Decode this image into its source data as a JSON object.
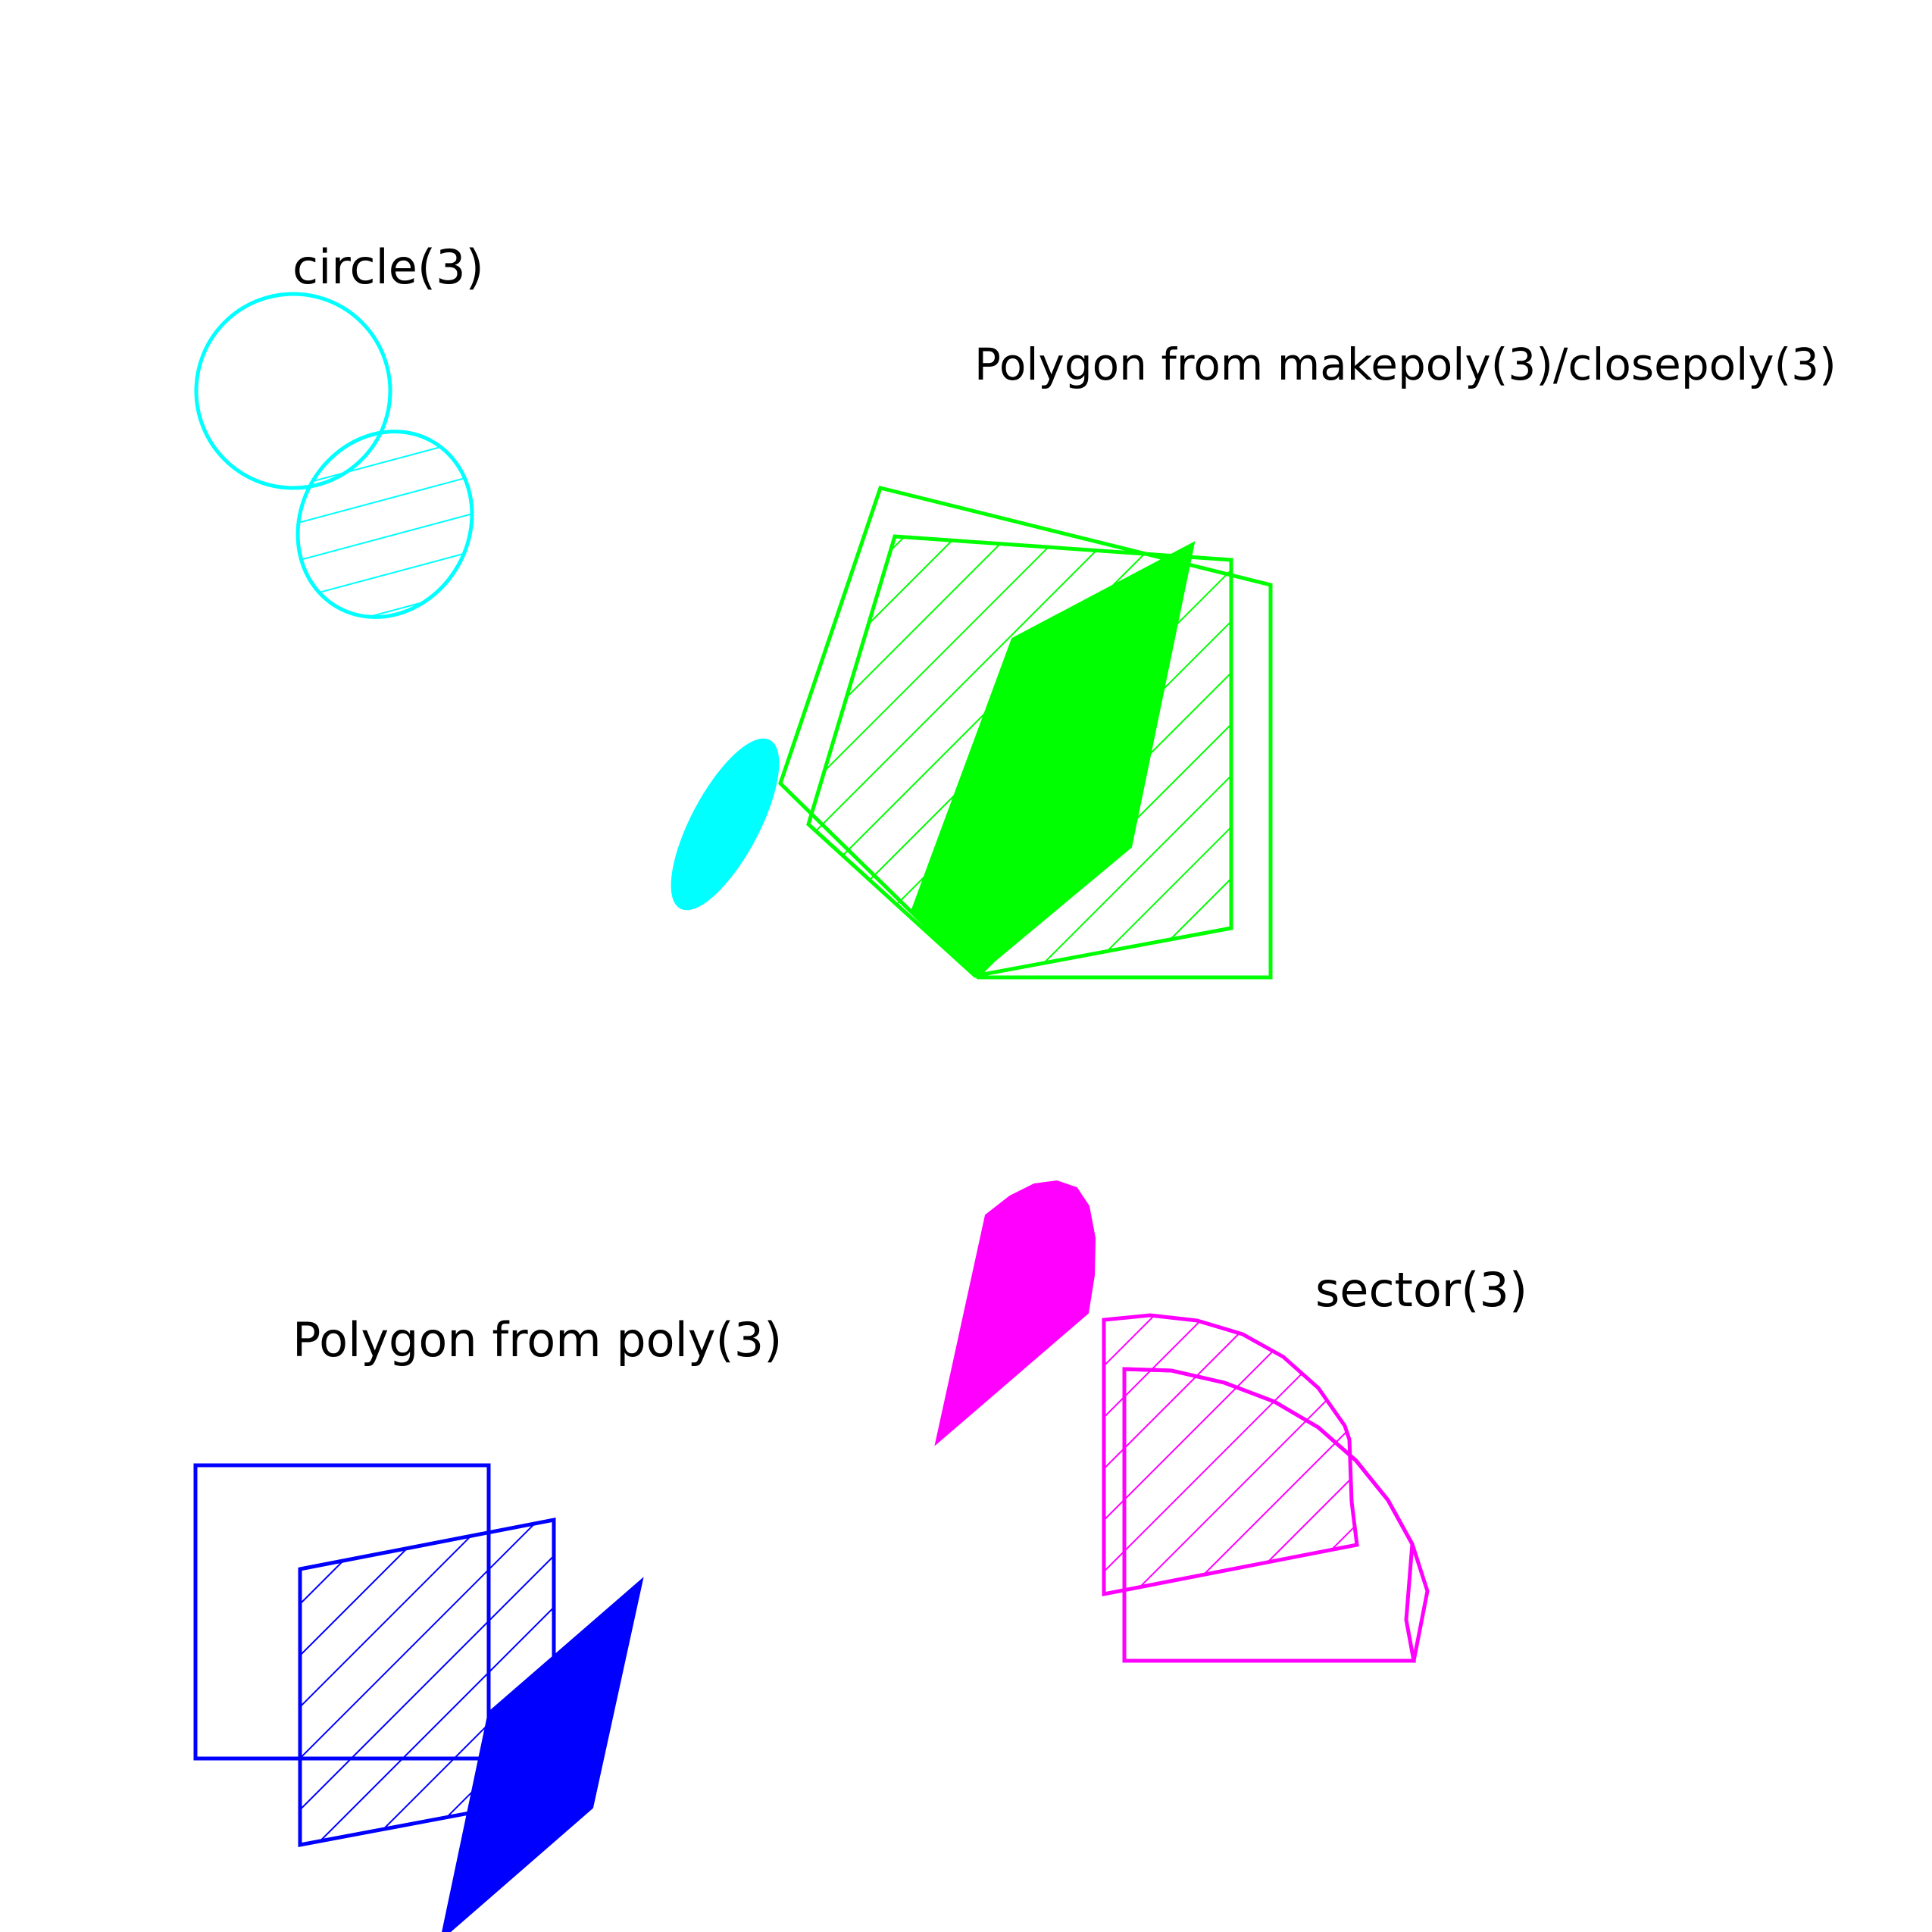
{
  "labels": {
    "circle": "circle(3)",
    "makepoly": "Polygon from makepoly(3)/closepoly(3)",
    "poly": "Polygon from poly(3)",
    "sector": "sector(3)"
  },
  "colors": {
    "background": "#ffffff",
    "circle": "#00ffff",
    "makepoly": "#00ff00",
    "poly": "#0000ff",
    "sector": "#ff00ff",
    "text": "#000000"
  }
}
